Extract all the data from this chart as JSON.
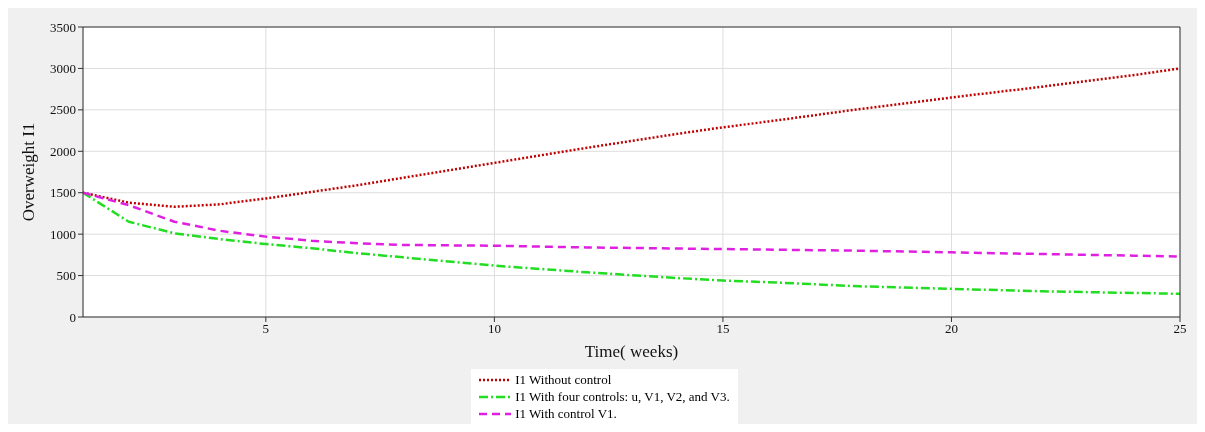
{
  "chart_data": {
    "type": "line",
    "xlabel": "Time( weeks)",
    "ylabel": "Overweight  I1",
    "xlim": [
      1,
      25
    ],
    "xticks": [
      5,
      10,
      15,
      20,
      25
    ],
    "ylim": [
      0,
      3500
    ],
    "yticks": [
      0,
      500,
      1000,
      1500,
      2000,
      2500,
      3000,
      3500
    ],
    "grid": true,
    "legend": "bottom",
    "marker": "none",
    "series": [
      {
        "name": "I1 Without control",
        "color": "#c00000",
        "line_style": "dotted",
        "x": [
          1,
          2,
          3,
          4,
          5,
          6,
          7,
          8,
          9,
          10,
          12,
          14,
          15,
          16,
          18,
          20,
          22,
          24,
          25
        ],
        "values": [
          1500,
          1380,
          1330,
          1360,
          1430,
          1510,
          1590,
          1680,
          1770,
          1860,
          2040,
          2210,
          2290,
          2360,
          2510,
          2650,
          2780,
          2920,
          3000
        ]
      },
      {
        "name": "I1 With four controls: u, V1, V2, and V3.",
        "color": "#22dd22",
        "line_style": "dashdot",
        "x": [
          1,
          2,
          3,
          4,
          5,
          6,
          7,
          8,
          9,
          10,
          12,
          14,
          15,
          16,
          18,
          20,
          22,
          24,
          25
        ],
        "values": [
          1500,
          1150,
          1010,
          940,
          880,
          830,
          770,
          720,
          670,
          620,
          540,
          470,
          440,
          420,
          370,
          340,
          310,
          290,
          280
        ]
      },
      {
        "name": "I1 With  control V1.",
        "color": "#e020e0",
        "line_style": "dashed",
        "x": [
          1,
          2,
          3,
          4,
          5,
          6,
          7,
          8,
          10,
          12,
          15,
          18,
          20,
          22,
          24,
          25
        ],
        "values": [
          1500,
          1350,
          1150,
          1040,
          970,
          920,
          890,
          870,
          860,
          840,
          820,
          800,
          780,
          760,
          740,
          730
        ]
      }
    ]
  }
}
